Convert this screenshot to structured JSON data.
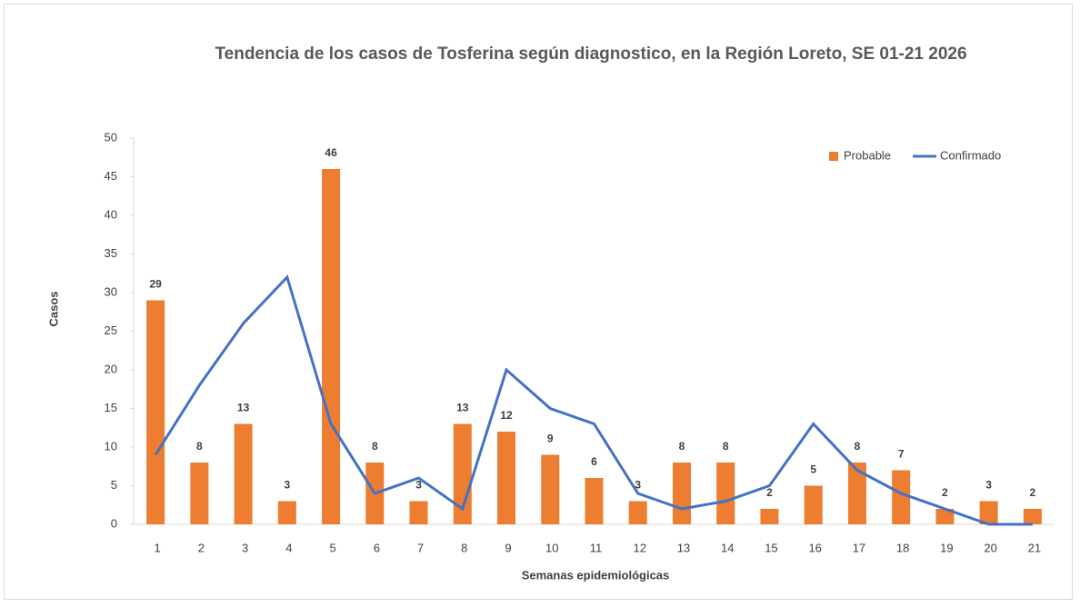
{
  "chart_data": {
    "type": "bar",
    "title": "Tendencia de los casos de Tosferina según diagnostico, en la Región Loreto, SE 01-21 2026",
    "x_label": "Semanas epidemiológicas",
    "y_label": "Casos",
    "categories": [
      "1",
      "2",
      "3",
      "4",
      "5",
      "6",
      "7",
      "8",
      "9",
      "10",
      "11",
      "12",
      "13",
      "14",
      "15",
      "16",
      "17",
      "18",
      "19",
      "20",
      "21"
    ],
    "series": [
      {
        "name": "Probable",
        "type": "bar",
        "color": "#ed7d31",
        "values": [
          29,
          8,
          13,
          3,
          46,
          8,
          3,
          13,
          12,
          9,
          6,
          3,
          8,
          8,
          2,
          5,
          8,
          7,
          2,
          3,
          2
        ]
      },
      {
        "name": "Confirmado",
        "type": "line",
        "color": "#4472c4",
        "values": [
          9,
          18,
          26,
          32,
          13,
          4,
          6,
          2,
          20,
          15,
          13,
          4,
          2,
          3,
          5,
          13,
          7,
          4,
          2,
          0,
          0
        ]
      }
    ],
    "ylim": [
      0,
      50
    ],
    "yticks": [
      0,
      5,
      10,
      15,
      20,
      25,
      30,
      35,
      40,
      45,
      50
    ],
    "legend": "top-right"
  }
}
